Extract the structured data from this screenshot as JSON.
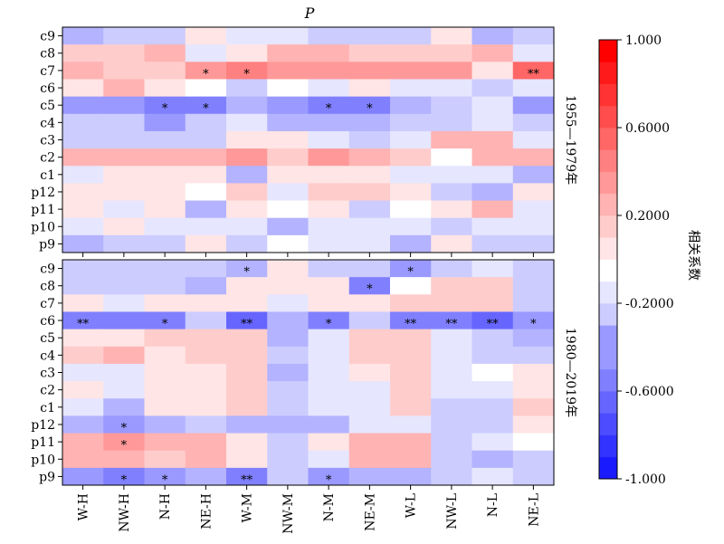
{
  "chart_data": {
    "type": "heatmap",
    "title": "P",
    "xlabels": [
      "W-H",
      "NW-H",
      "N-H",
      "NE-H",
      "W-M",
      "NW-M",
      "N-M",
      "NE-M",
      "W-L",
      "NW-L",
      "N-L",
      "NE-L"
    ],
    "ylabels": [
      "c9",
      "c8",
      "c7",
      "c6",
      "c5",
      "c4",
      "c3",
      "c2",
      "c1",
      "p12",
      "p11",
      "p10",
      "p9"
    ],
    "colorbar": {
      "label": "相关系数",
      "range": [
        -1.0,
        1.0
      ],
      "ticks": [
        "1.000",
        "0.6000",
        "0.2000",
        "-0.2000",
        "-0.6000",
        "-1.000"
      ],
      "tick_values": [
        1.0,
        0.6,
        0.2,
        -0.2,
        -0.6,
        -1.0
      ],
      "low_color": "#0000ff",
      "mid_color": "#ffffff",
      "high_color": "#ff0000"
    },
    "heatmaps": [
      {
        "panel_label": "1955—1979年",
        "values": [
          [
            -0.28,
            -0.23,
            -0.23,
            0.05,
            -0.15,
            -0.13,
            -0.17,
            -0.2,
            -0.2,
            0.07,
            -0.35,
            -0.22
          ],
          [
            0.22,
            0.17,
            0.27,
            -0.07,
            0.12,
            0.27,
            0.32,
            0.22,
            0.22,
            0.22,
            0.28,
            -0.08
          ],
          [
            0.3,
            0.15,
            0.22,
            0.38,
            0.5,
            0.38,
            0.38,
            0.42,
            0.42,
            0.38,
            0.05,
            0.55
          ],
          [
            0.05,
            0.32,
            0.1,
            0.02,
            -0.22,
            0.02,
            -0.15,
            0.08,
            -0.12,
            -0.15,
            -0.17,
            -0.08
          ],
          [
            -0.43,
            -0.43,
            -0.5,
            -0.55,
            -0.3,
            -0.4,
            -0.5,
            -0.55,
            -0.3,
            -0.22,
            -0.08,
            -0.38
          ],
          [
            -0.23,
            -0.23,
            -0.36,
            -0.23,
            -0.1,
            -0.27,
            -0.27,
            -0.27,
            -0.17,
            -0.23,
            -0.08,
            -0.22
          ],
          [
            -0.17,
            -0.17,
            -0.2,
            -0.2,
            0.07,
            0.12,
            -0.08,
            -0.17,
            -0.13,
            0.25,
            0.25,
            -0.13
          ],
          [
            0.32,
            0.32,
            0.32,
            0.28,
            0.36,
            0.17,
            0.38,
            0.32,
            0.17,
            -0.05,
            0.28,
            0.32
          ],
          [
            -0.07,
            0.12,
            0.12,
            0.07,
            -0.35,
            0.07,
            0.07,
            0.07,
            -0.07,
            -0.07,
            -0.07,
            -0.28
          ],
          [
            0.13,
            0.07,
            0.07,
            -0.05,
            0.17,
            -0.15,
            0.17,
            0.17,
            0.07,
            -0.17,
            -0.27,
            0.07
          ],
          [
            0.07,
            -0.15,
            0.07,
            -0.33,
            0.12,
            0.02,
            0.07,
            -0.17,
            0.02,
            0.07,
            0.25,
            -0.07
          ],
          [
            -0.07,
            0.07,
            -0.07,
            -0.15,
            -0.1,
            -0.27,
            -0.07,
            -0.07,
            -0.12,
            -0.17,
            -0.13,
            -0.13
          ],
          [
            -0.3,
            -0.2,
            -0.23,
            0.1,
            -0.2,
            -0.05,
            -0.12,
            -0.1,
            -0.35,
            0.07,
            -0.2,
            -0.17
          ]
        ],
        "significance": [
          [
            "",
            "",
            "",
            "",
            "",
            "",
            "",
            "",
            "",
            "",
            "",
            ""
          ],
          [
            "",
            "",
            "",
            "",
            "",
            "",
            "",
            "",
            "",
            "",
            "",
            ""
          ],
          [
            "",
            "",
            "",
            "*",
            "*",
            "",
            "",
            "",
            "",
            "",
            "",
            "**"
          ],
          [
            "",
            "",
            "",
            "",
            "",
            "",
            "",
            "",
            "",
            "",
            "",
            ""
          ],
          [
            "",
            "",
            "*",
            "*",
            "",
            "",
            "*",
            "*",
            "",
            "",
            "",
            ""
          ],
          [
            "",
            "",
            "",
            "",
            "",
            "",
            "",
            "",
            "",
            "",
            "",
            ""
          ],
          [
            "",
            "",
            "",
            "",
            "",
            "",
            "",
            "",
            "",
            "",
            "",
            ""
          ],
          [
            "",
            "",
            "",
            "",
            "",
            "",
            "",
            "",
            "",
            "",
            "",
            ""
          ],
          [
            "",
            "",
            "",
            "",
            "",
            "",
            "",
            "",
            "",
            "",
            "",
            ""
          ],
          [
            "",
            "",
            "",
            "",
            "",
            "",
            "",
            "",
            "",
            "",
            "",
            ""
          ],
          [
            "",
            "",
            "",
            "",
            "",
            "",
            "",
            "",
            "",
            "",
            "",
            ""
          ],
          [
            "",
            "",
            "",
            "",
            "",
            "",
            "",
            "",
            "",
            "",
            "",
            ""
          ],
          [
            "",
            "",
            "",
            "",
            "",
            "",
            "",
            "",
            "",
            "",
            "",
            ""
          ]
        ]
      },
      {
        "panel_label": "1980—2019年",
        "values": [
          [
            -0.17,
            -0.2,
            -0.25,
            -0.2,
            -0.3,
            0.05,
            -0.2,
            -0.2,
            -0.4,
            -0.17,
            -0.07,
            -0.2
          ],
          [
            -0.2,
            -0.25,
            -0.23,
            -0.27,
            0.05,
            0.05,
            0.12,
            -0.55,
            -0.05,
            0.22,
            0.22,
            -0.2
          ],
          [
            0.05,
            -0.12,
            0.07,
            0.07,
            0.1,
            -0.07,
            0.07,
            0.07,
            0.17,
            0.17,
            0.2,
            -0.2
          ],
          [
            -0.55,
            -0.48,
            -0.48,
            -0.2,
            -0.6,
            -0.3,
            -0.55,
            -0.17,
            -0.55,
            -0.55,
            -0.58,
            -0.38
          ],
          [
            0.12,
            0.12,
            0.17,
            0.17,
            0.22,
            -0.27,
            -0.07,
            0.17,
            0.22,
            -0.08,
            -0.23,
            -0.27
          ],
          [
            0.22,
            0.27,
            0.07,
            0.2,
            0.22,
            -0.17,
            -0.07,
            0.17,
            0.22,
            -0.07,
            -0.22,
            -0.22
          ],
          [
            -0.07,
            -0.13,
            0.07,
            0.07,
            0.2,
            -0.27,
            -0.07,
            0.12,
            0.22,
            -0.13,
            -0.05,
            0.07
          ],
          [
            0.12,
            -0.07,
            0.07,
            0.07,
            0.22,
            -0.23,
            -0.07,
            -0.12,
            0.22,
            -0.1,
            -0.13,
            0.07
          ],
          [
            -0.12,
            -0.27,
            0.07,
            0.07,
            0.22,
            -0.2,
            -0.07,
            -0.07,
            0.22,
            -0.17,
            -0.25,
            0.17
          ],
          [
            -0.27,
            -0.4,
            -0.27,
            -0.17,
            -0.35,
            -0.3,
            -0.35,
            -0.07,
            -0.07,
            -0.17,
            -0.25,
            0.07
          ],
          [
            0.27,
            0.4,
            0.32,
            0.32,
            0.12,
            -0.2,
            0.05,
            0.27,
            0.27,
            -0.17,
            -0.13,
            0.02
          ],
          [
            0.27,
            0.27,
            0.22,
            0.3,
            0.12,
            -0.2,
            -0.13,
            0.27,
            0.27,
            -0.17,
            -0.27,
            -0.17
          ],
          [
            -0.43,
            -0.48,
            -0.4,
            -0.27,
            -0.48,
            -0.2,
            -0.4,
            -0.27,
            -0.33,
            -0.2,
            -0.07,
            -0.22
          ]
        ],
        "significance": [
          [
            "",
            "",
            "",
            "",
            "*",
            "",
            "",
            "",
            "*",
            "",
            "",
            ""
          ],
          [
            "",
            "",
            "",
            "",
            "",
            "",
            "",
            "*",
            "",
            "",
            "",
            ""
          ],
          [
            "",
            "",
            "",
            "",
            "",
            "",
            "",
            "",
            "",
            "",
            "",
            ""
          ],
          [
            "**",
            "",
            "*",
            "",
            "**",
            "",
            "*",
            "",
            "**",
            "**",
            "**",
            "*"
          ],
          [
            "",
            "",
            "",
            "",
            "",
            "",
            "",
            "",
            "",
            "",
            "",
            ""
          ],
          [
            "",
            "",
            "",
            "",
            "",
            "",
            "",
            "",
            "",
            "",
            "",
            ""
          ],
          [
            "",
            "",
            "",
            "",
            "",
            "",
            "",
            "",
            "",
            "",
            "",
            ""
          ],
          [
            "",
            "",
            "",
            "",
            "",
            "",
            "",
            "",
            "",
            "",
            "",
            ""
          ],
          [
            "",
            "",
            "",
            "",
            "",
            "",
            "",
            "",
            "",
            "",
            "",
            ""
          ],
          [
            "",
            "*",
            "",
            "",
            "",
            "",
            "",
            "",
            "",
            "",
            "",
            ""
          ],
          [
            "",
            "*",
            "",
            "",
            "",
            "",
            "",
            "",
            "",
            "",
            "",
            ""
          ],
          [
            "",
            "",
            "",
            "",
            "",
            "",
            "",
            "",
            "",
            "",
            "",
            ""
          ],
          [
            "",
            "*",
            "*",
            "",
            "**",
            "",
            "*",
            "",
            "",
            "",
            "",
            ""
          ]
        ]
      }
    ]
  }
}
